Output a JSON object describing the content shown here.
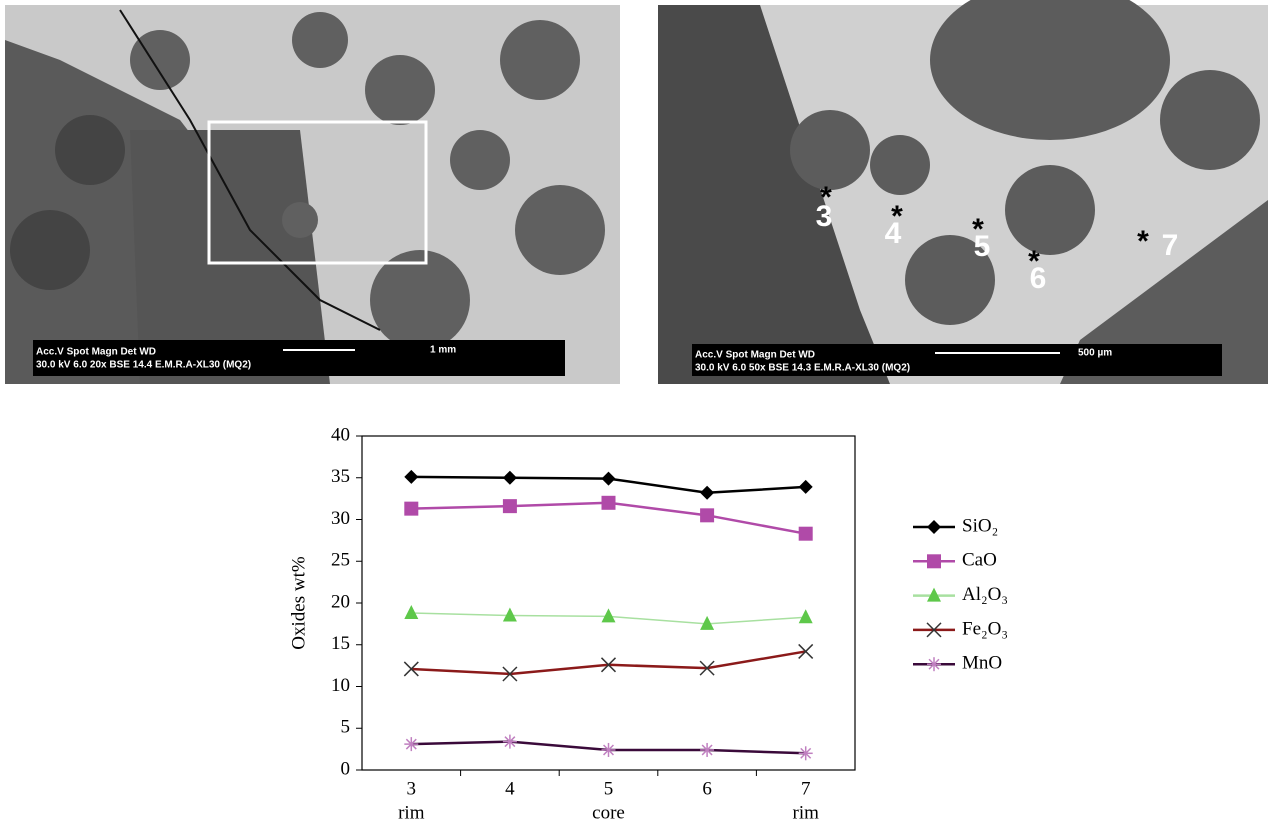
{
  "images": [
    {
      "info_line1": "Acc.V  Spot Magn     Det  WD",
      "info_line2": "30.0 kV 6.0   20x     BSE 14.4  E.M.R.A-XL30 (MQ2)",
      "scale": "1 mm"
    },
    {
      "info_line1": "Acc.V  Spot Magn     Det  WD",
      "info_line2": "30.0 kV 6.0   50x     BSE 14.3  E.M.R.A-XL30 (MQ2)",
      "scale": "500 µm",
      "points": [
        {
          "marker": "*",
          "label": "3"
        },
        {
          "marker": "*",
          "label": "4"
        },
        {
          "marker": "*",
          "label": "5"
        },
        {
          "marker": "*",
          "label": "6"
        },
        {
          "marker": "*",
          "label": "7"
        }
      ]
    }
  ],
  "chart_data": {
    "type": "line",
    "y_label": "Oxides wt%",
    "categories": [
      "3",
      "4",
      "5",
      "6",
      "7"
    ],
    "category_notes": [
      "rim",
      null,
      "core",
      null,
      "rim"
    ],
    "ylim": [
      0,
      40
    ],
    "yticks": [
      0,
      5,
      10,
      15,
      20,
      25,
      30,
      35,
      40
    ],
    "series": [
      {
        "name": "SiO₂",
        "color": "#000000",
        "marker": "diamond",
        "values": [
          35.1,
          35.0,
          34.9,
          33.2,
          33.9
        ]
      },
      {
        "name": "CaO",
        "color": "#b04aa8",
        "marker": "square",
        "values": [
          31.3,
          31.6,
          32.0,
          30.5,
          28.3
        ]
      },
      {
        "name": "Al₂O₃",
        "color": "#5ec84a",
        "marker": "triangle",
        "values": [
          18.8,
          18.5,
          18.4,
          17.5,
          18.3
        ]
      },
      {
        "name": "Fe₂O₃",
        "color": "#8b1a1a",
        "marker": "x",
        "values": [
          12.1,
          11.5,
          12.6,
          12.2,
          14.2
        ]
      },
      {
        "name": "MnO",
        "color": "#3a0a3a",
        "marker": "star",
        "values": [
          3.1,
          3.4,
          2.4,
          2.4,
          2.0
        ]
      }
    ]
  }
}
